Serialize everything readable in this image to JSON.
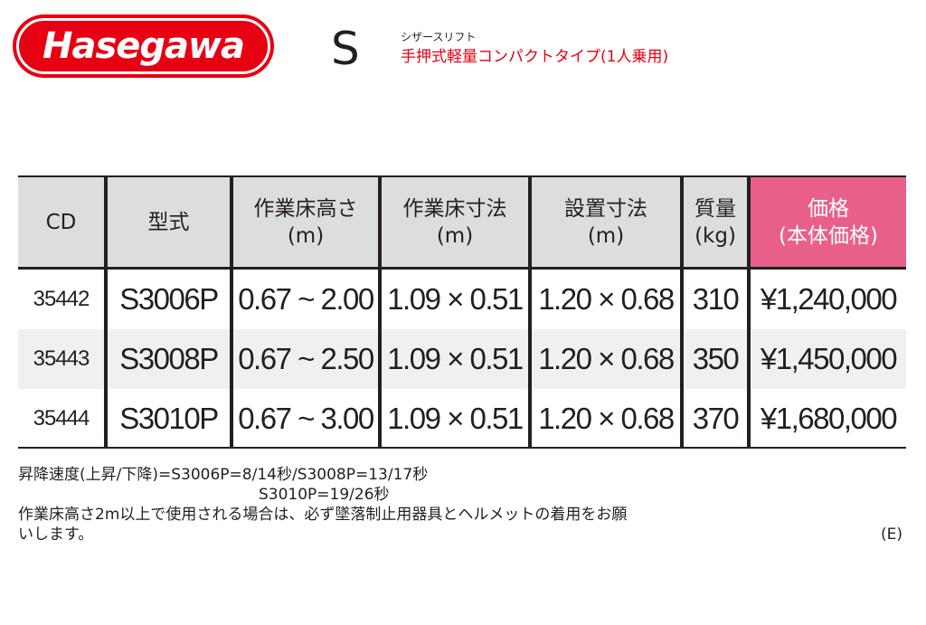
{
  "brand": {
    "logo_text": "Hasegawa",
    "color": "#e60012"
  },
  "header": {
    "series": "S",
    "category": "シザースリフト",
    "description": "手押式軽量コンパクトタイプ(1人乗用)"
  },
  "table": {
    "headers": [
      {
        "line1": "CD",
        "line2": ""
      },
      {
        "line1": "型式",
        "line2": ""
      },
      {
        "line1": "作業床高さ",
        "line2": "(m)"
      },
      {
        "line1": "作業床寸法",
        "line2": "(m)"
      },
      {
        "line1": "設置寸法",
        "line2": "(m)"
      },
      {
        "line1": "質量",
        "line2": "(kg)"
      },
      {
        "line1": "価格",
        "line2": "(本体価格)"
      }
    ],
    "rows": [
      {
        "cd": "35442",
        "model": "S3006P",
        "height": "0.67 ~ 2.00",
        "platform": "1.09 × 0.51",
        "install": "1.20 × 0.68",
        "mass": "310",
        "price": "¥1,240,000"
      },
      {
        "cd": "35443",
        "model": "S3008P",
        "height": "0.67 ~ 2.50",
        "platform": "1.09 × 0.51",
        "install": "1.20 × 0.68",
        "mass": "350",
        "price": "¥1,450,000"
      },
      {
        "cd": "35444",
        "model": "S3010P",
        "height": "0.67 ~ 3.00",
        "platform": "1.09 × 0.51",
        "install": "1.20 × 0.68",
        "mass": "370",
        "price": "¥1,680,000"
      }
    ],
    "colors": {
      "header_bg": "#dcdddd",
      "price_header_bg": "#e8608a",
      "stripe": "#f0f0f0"
    }
  },
  "notes": {
    "speed_line1": "昇降速度(上昇/下降)=S3006P=8/14秒/S3008P=13/17秒",
    "speed_line2": "S3010P=19/26秒",
    "safety_line1": "作業床高さ2m以上で使用される場合は、必ず墜落制止用器具とヘルメットの着用をお願",
    "safety_line2": "いします。",
    "code": "(E)"
  }
}
